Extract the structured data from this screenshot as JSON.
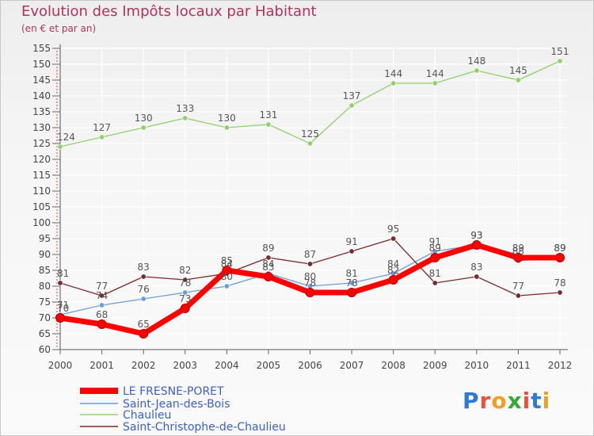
{
  "title": "Evolution des Impôts locaux par Habitant",
  "subtitle": "(en € et par an)",
  "logo": {
    "text": "Proxiti",
    "letter_colors": [
      "#2e7bd6",
      "#e8523a",
      "#f0a020",
      "#36a836",
      "#e8523a",
      "#2e7bd6",
      "#f0a020"
    ]
  },
  "colors": {
    "title": "#b0345a",
    "axis": "#444444",
    "grid": "#ffffff"
  },
  "chart_data": {
    "type": "line",
    "title": "Evolution des Impôts locaux par Habitant",
    "subtitle": "(en € et par an)",
    "x": [
      "2000",
      "2001",
      "2002",
      "2003",
      "2004",
      "2005",
      "2006",
      "2007",
      "2008",
      "2009",
      "2010",
      "2011",
      "2012"
    ],
    "ylim": [
      60,
      155
    ],
    "yticks": [
      60,
      65,
      70,
      75,
      80,
      85,
      90,
      95,
      100,
      105,
      110,
      115,
      120,
      125,
      130,
      135,
      140,
      145,
      150,
      155
    ],
    "grid": true,
    "legend_position": "bottom-left",
    "series": [
      {
        "name": "LE FRESNE-PORET",
        "color": "#ff0000",
        "thick": true,
        "values": [
          70,
          68,
          65,
          73,
          85,
          83,
          78,
          78,
          82,
          89,
          93,
          89,
          89
        ],
        "labels": [
          "70",
          "68",
          "65",
          "73",
          "85",
          "83",
          "78",
          "78",
          "82",
          "89",
          "93",
          "89",
          "89"
        ]
      },
      {
        "name": "Saint-Jean-des-Bois",
        "color": "#6b9ed6",
        "thick": false,
        "values": [
          71,
          74,
          76,
          78,
          80,
          84,
          80,
          81,
          84,
          91,
          93,
          88,
          89
        ],
        "labels": [
          "71",
          "74",
          "76",
          "78",
          "80",
          "84",
          "80",
          "81",
          "84",
          "91",
          "93",
          "88",
          "89"
        ]
      },
      {
        "name": "Chaulieu",
        "color": "#8fd16a",
        "thick": false,
        "values": [
          124,
          127,
          130,
          133,
          130,
          131,
          125,
          137,
          144,
          144,
          148,
          145,
          151
        ],
        "labels": [
          "124",
          "127",
          "130",
          "133",
          "130",
          "131",
          "125",
          "137",
          "144",
          "144",
          "148",
          "145",
          "151"
        ]
      },
      {
        "name": "Saint-Christophe-de-Chaulieu",
        "color": "#7a2a2a",
        "thick": false,
        "values": [
          81,
          77,
          83,
          82,
          84,
          89,
          87,
          91,
          95,
          81,
          83,
          77,
          78
        ],
        "labels": [
          "81",
          "77",
          "83",
          "82",
          "84",
          "89",
          "87",
          "91",
          "95",
          "81",
          "83",
          "77",
          "78"
        ]
      }
    ]
  }
}
